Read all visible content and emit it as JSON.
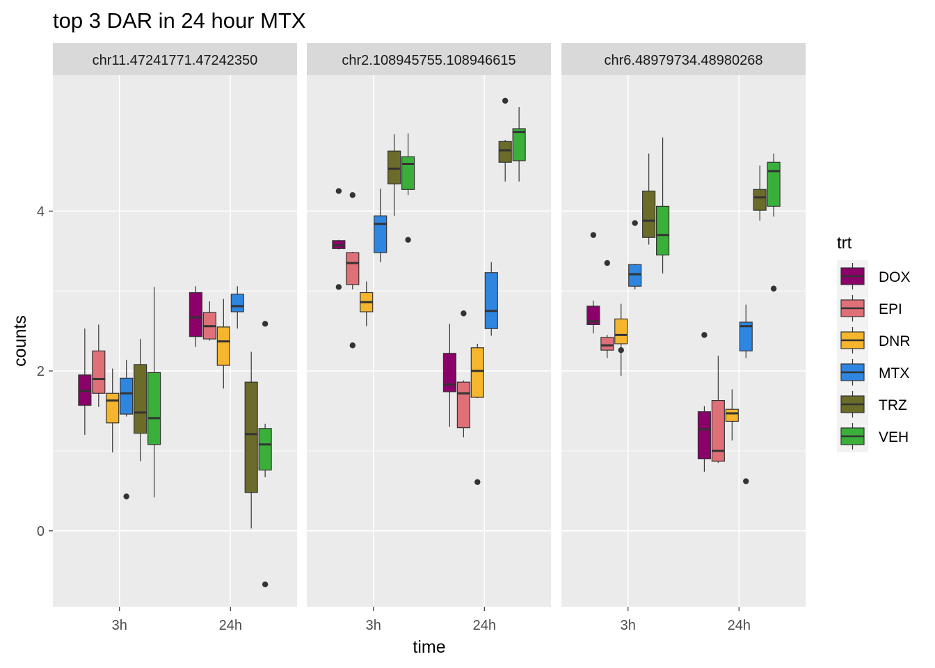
{
  "chart_data": {
    "type": "boxplot",
    "title": "top 3 DAR in 24 hour MTX",
    "xlabel": "time",
    "ylabel": "counts",
    "ylim": [
      -0.95,
      5.7
    ],
    "y_ticks": [
      0,
      2,
      4
    ],
    "y_tick_labels": [
      "0",
      "2",
      "4"
    ],
    "x_categories": [
      "3h",
      "24h"
    ],
    "grid": true,
    "legend": {
      "title": "trt",
      "placement": "right",
      "entries": [
        "DOX",
        "EPI",
        "DNR",
        "MTX",
        "TRZ",
        "VEH"
      ]
    },
    "colors": {
      "DOX": "#8B0069",
      "EPI": "#E07078",
      "DNR": "#F5B52C",
      "MTX": "#2F86E0",
      "TRZ": "#6B6B2A",
      "VEH": "#3AAF3A"
    },
    "facets": [
      {
        "label": "chr11.47241771.47242350",
        "groups": {
          "3h": {
            "DOX": {
              "lower_whisker": 1.2,
              "q1": 1.57,
              "median": 1.75,
              "q3": 1.95,
              "upper_whisker": 2.53,
              "outliers": []
            },
            "EPI": {
              "lower_whisker": 1.55,
              "q1": 1.72,
              "median": 1.9,
              "q3": 2.25,
              "upper_whisker": 2.58,
              "outliers": []
            },
            "DNR": {
              "lower_whisker": 0.98,
              "q1": 1.35,
              "median": 1.63,
              "q3": 1.72,
              "upper_whisker": 2.03,
              "outliers": []
            },
            "MTX": {
              "lower_whisker": 1.43,
              "q1": 1.46,
              "median": 1.72,
              "q3": 1.91,
              "upper_whisker": 2.14,
              "outliers": [
                0.43
              ]
            },
            "TRZ": {
              "lower_whisker": 0.87,
              "q1": 1.22,
              "median": 1.48,
              "q3": 2.08,
              "upper_whisker": 2.4,
              "outliers": []
            },
            "VEH": {
              "lower_whisker": 0.42,
              "q1": 1.08,
              "median": 1.41,
              "q3": 1.98,
              "upper_whisker": 3.05,
              "outliers": []
            }
          },
          "24h": {
            "DOX": {
              "lower_whisker": 2.3,
              "q1": 2.43,
              "median": 2.67,
              "q3": 2.98,
              "upper_whisker": 3.06,
              "outliers": []
            },
            "EPI": {
              "lower_whisker": 2.38,
              "q1": 2.4,
              "median": 2.56,
              "q3": 2.73,
              "upper_whisker": 2.87,
              "outliers": []
            },
            "DNR": {
              "lower_whisker": 1.78,
              "q1": 2.07,
              "median": 2.37,
              "q3": 2.55,
              "upper_whisker": 2.9,
              "outliers": []
            },
            "MTX": {
              "lower_whisker": 2.53,
              "q1": 2.74,
              "median": 2.81,
              "q3": 2.96,
              "upper_whisker": 3.06,
              "outliers": []
            },
            "TRZ": {
              "lower_whisker": 0.03,
              "q1": 0.48,
              "median": 1.21,
              "q3": 1.86,
              "upper_whisker": 2.24,
              "outliers": []
            },
            "VEH": {
              "lower_whisker": 0.67,
              "q1": 0.76,
              "median": 1.08,
              "q3": 1.28,
              "upper_whisker": 1.34,
              "outliers": [
                2.59,
                -0.67
              ]
            }
          }
        }
      },
      {
        "label": "chr2.108945755.108946615",
        "groups": {
          "3h": {
            "DOX": {
              "lower_whisker": 3.52,
              "q1": 3.53,
              "median": 3.57,
              "q3": 3.63,
              "upper_whisker": 3.64,
              "outliers": [
                4.25,
                3.05
              ]
            },
            "EPI": {
              "lower_whisker": 3.02,
              "q1": 3.08,
              "median": 3.35,
              "q3": 3.48,
              "upper_whisker": 3.49,
              "outliers": [
                4.2,
                2.32
              ]
            },
            "DNR": {
              "lower_whisker": 2.56,
              "q1": 2.74,
              "median": 2.86,
              "q3": 2.98,
              "upper_whisker": 3.12,
              "outliers": []
            },
            "MTX": {
              "lower_whisker": 3.36,
              "q1": 3.48,
              "median": 3.84,
              "q3": 3.94,
              "upper_whisker": 4.28,
              "outliers": []
            },
            "TRZ": {
              "lower_whisker": 3.94,
              "q1": 4.34,
              "median": 4.53,
              "q3": 4.75,
              "upper_whisker": 4.96,
              "outliers": []
            },
            "VEH": {
              "lower_whisker": 4.2,
              "q1": 4.27,
              "median": 4.59,
              "q3": 4.68,
              "upper_whisker": 4.97,
              "outliers": [
                3.64
              ]
            }
          },
          "24h": {
            "DOX": {
              "lower_whisker": 1.3,
              "q1": 1.74,
              "median": 1.83,
              "q3": 2.22,
              "upper_whisker": 2.59,
              "outliers": []
            },
            "EPI": {
              "lower_whisker": 1.17,
              "q1": 1.29,
              "median": 1.72,
              "q3": 1.86,
              "upper_whisker": 1.88,
              "outliers": [
                2.72
              ]
            },
            "DNR": {
              "lower_whisker": 1.66,
              "q1": 1.67,
              "median": 2.0,
              "q3": 2.29,
              "upper_whisker": 2.34,
              "outliers": [
                0.61
              ]
            },
            "MTX": {
              "lower_whisker": 2.44,
              "q1": 2.53,
              "median": 2.75,
              "q3": 3.23,
              "upper_whisker": 3.36,
              "outliers": []
            },
            "TRZ": {
              "lower_whisker": 4.37,
              "q1": 4.61,
              "median": 4.76,
              "q3": 4.87,
              "upper_whisker": 4.89,
              "outliers": [
                5.38
              ]
            },
            "VEH": {
              "lower_whisker": 4.37,
              "q1": 4.63,
              "median": 4.99,
              "q3": 5.03,
              "upper_whisker": 5.3,
              "outliers": []
            }
          }
        }
      },
      {
        "label": "chr6.48979734.48980268",
        "groups": {
          "3h": {
            "DOX": {
              "lower_whisker": 2.47,
              "q1": 2.58,
              "median": 2.62,
              "q3": 2.81,
              "upper_whisker": 2.88,
              "outliers": [
                3.7
              ]
            },
            "EPI": {
              "lower_whisker": 2.16,
              "q1": 2.26,
              "median": 2.32,
              "q3": 2.42,
              "upper_whisker": 2.45,
              "outliers": [
                3.35
              ]
            },
            "DNR": {
              "lower_whisker": 1.94,
              "q1": 2.34,
              "median": 2.45,
              "q3": 2.65,
              "upper_whisker": 2.84,
              "outliers": [
                2.26
              ]
            },
            "MTX": {
              "lower_whisker": 3.02,
              "q1": 3.06,
              "median": 3.21,
              "q3": 3.33,
              "upper_whisker": 3.34,
              "outliers": [
                3.85
              ]
            },
            "TRZ": {
              "lower_whisker": 3.58,
              "q1": 3.67,
              "median": 3.88,
              "q3": 4.25,
              "upper_whisker": 4.72,
              "outliers": []
            },
            "VEH": {
              "lower_whisker": 3.22,
              "q1": 3.45,
              "median": 3.7,
              "q3": 4.06,
              "upper_whisker": 4.92,
              "outliers": []
            }
          },
          "24h": {
            "DOX": {
              "lower_whisker": 0.74,
              "q1": 0.9,
              "median": 1.27,
              "q3": 1.49,
              "upper_whisker": 1.56,
              "outliers": [
                2.45
              ]
            },
            "EPI": {
              "lower_whisker": 0.85,
              "q1": 0.87,
              "median": 1.0,
              "q3": 1.63,
              "upper_whisker": 2.19,
              "outliers": []
            },
            "DNR": {
              "lower_whisker": 1.13,
              "q1": 1.37,
              "median": 1.47,
              "q3": 1.52,
              "upper_whisker": 1.77,
              "outliers": []
            },
            "MTX": {
              "lower_whisker": 2.16,
              "q1": 2.25,
              "median": 2.56,
              "q3": 2.61,
              "upper_whisker": 2.83,
              "outliers": [
                0.62
              ]
            },
            "TRZ": {
              "lower_whisker": 3.88,
              "q1": 4.01,
              "median": 4.17,
              "q3": 4.27,
              "upper_whisker": 4.57,
              "outliers": []
            },
            "VEH": {
              "lower_whisker": 3.93,
              "q1": 4.06,
              "median": 4.5,
              "q3": 4.61,
              "upper_whisker": 4.72,
              "outliers": [
                3.03
              ]
            }
          }
        }
      }
    ]
  }
}
